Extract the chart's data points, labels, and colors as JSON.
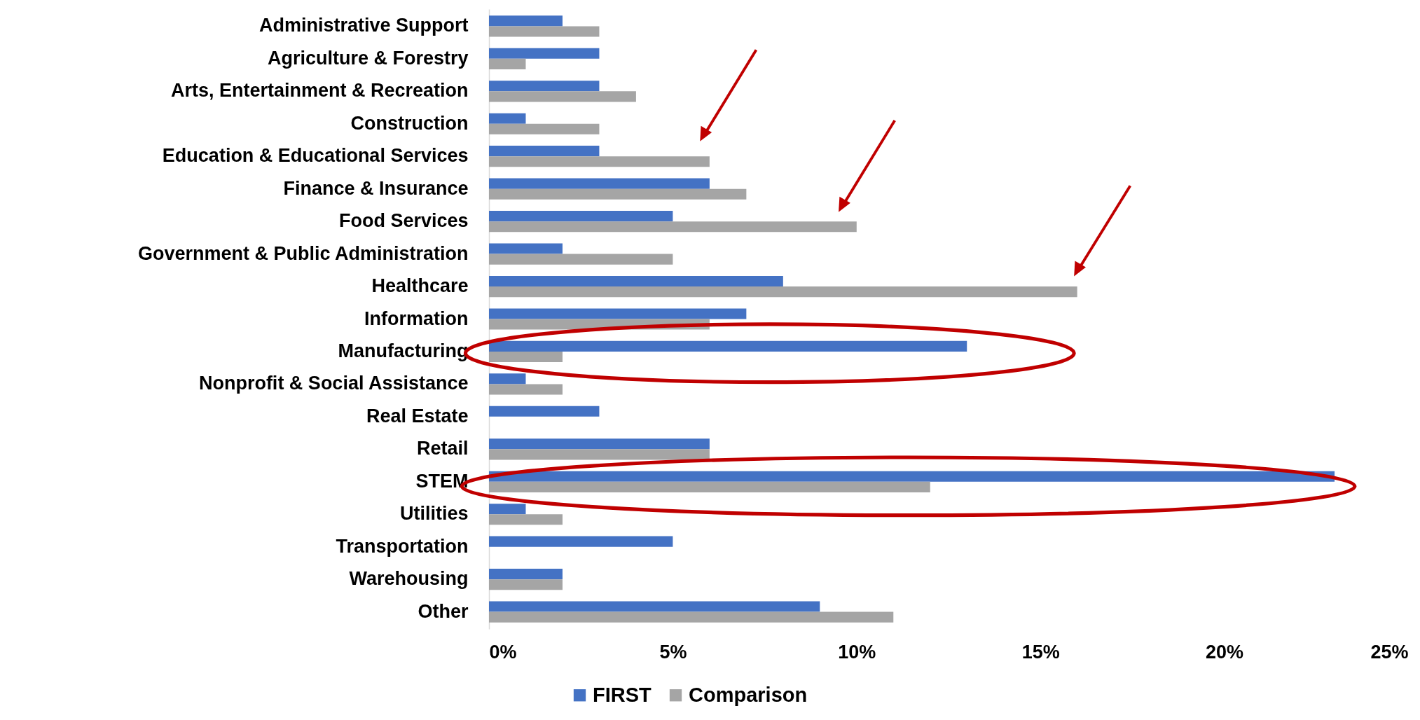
{
  "chart_data": {
    "type": "bar",
    "orientation": "horizontal",
    "categories": [
      "Administrative Support",
      "Agriculture & Forestry",
      "Arts, Entertainment & Recreation",
      "Construction",
      "Education & Educational Services",
      "Finance & Insurance",
      "Food Services",
      "Government & Public Administration",
      "Healthcare",
      "Information",
      "Manufacturing",
      "Nonprofit & Social Assistance",
      "Real Estate",
      "Retail",
      "STEM",
      "Utilities",
      "Transportation",
      "Warehousing",
      "Other"
    ],
    "series": [
      {
        "name": "FIRST",
        "color": "#4472c4",
        "values": [
          2,
          3,
          3,
          1,
          3,
          6,
          5,
          2,
          8,
          7,
          13,
          1,
          3,
          6,
          23,
          1,
          5,
          2,
          9
        ]
      },
      {
        "name": "Comparison",
        "color": "#a5a5a5",
        "values": [
          3,
          1,
          4,
          3,
          6,
          7,
          10,
          5,
          16,
          6,
          2,
          2,
          0,
          6,
          12,
          2,
          0,
          2,
          11
        ]
      }
    ],
    "xlim": [
      0,
      25
    ],
    "xticks": [
      {
        "value": 0,
        "label": "0%"
      },
      {
        "value": 5,
        "label": "5%"
      },
      {
        "value": 10,
        "label": "10%"
      },
      {
        "value": 15,
        "label": "15%"
      },
      {
        "value": 20,
        "label": "20%"
      },
      {
        "value": 25,
        "label": "25%"
      }
    ],
    "legend": "bottom"
  }
}
